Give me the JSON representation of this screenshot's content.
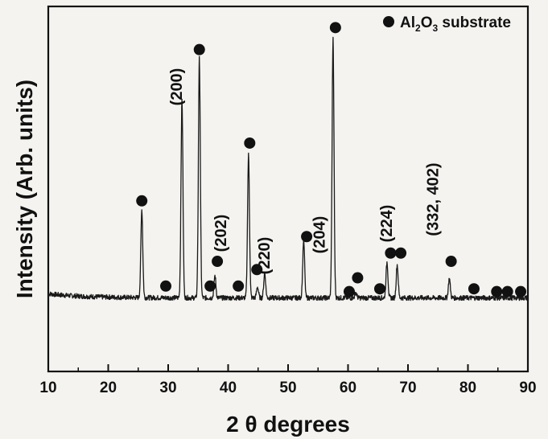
{
  "chart_data": {
    "type": "line",
    "title": "",
    "xlabel": "2 θ degrees",
    "ylabel": "Intensity (Arb. units)",
    "xlim": [
      10,
      90
    ],
    "x_ticks": [
      10,
      20,
      30,
      40,
      50,
      60,
      70,
      80,
      90
    ],
    "y_ticks_shown": false,
    "grid": false,
    "legend": {
      "placement": "top-right",
      "marker": "filled-circle",
      "label_main": "Al",
      "label_sub1": "2",
      "label_mid": "O",
      "label_sub2": "3",
      "label_tail": " substrate"
    },
    "baseline": 0.06,
    "peaks": [
      {
        "x": 25.6,
        "y": 0.38,
        "label": ""
      },
      {
        "x": 32.3,
        "y": 0.78,
        "label": "(200)"
      },
      {
        "x": 35.2,
        "y": 0.93,
        "label": ""
      },
      {
        "x": 37.8,
        "y": 0.14,
        "label": "(202)"
      },
      {
        "x": 43.4,
        "y": 0.58,
        "label": "(220)"
      },
      {
        "x": 44.9,
        "y": 0.1,
        "label": ""
      },
      {
        "x": 46.1,
        "y": 0.15,
        "label": ""
      },
      {
        "x": 52.6,
        "y": 0.27,
        "label": "(204)"
      },
      {
        "x": 57.5,
        "y": 1.0,
        "label": ""
      },
      {
        "x": 61.3,
        "y": 0.08,
        "label": ""
      },
      {
        "x": 66.5,
        "y": 0.19,
        "label": "(224)"
      },
      {
        "x": 68.2,
        "y": 0.18,
        "label": ""
      },
      {
        "x": 76.9,
        "y": 0.13,
        "label": "(332, 402)"
      }
    ],
    "substrate_markers": [
      {
        "x": 25.6,
        "y": 0.41
      },
      {
        "x": 29.6,
        "y": 0.1
      },
      {
        "x": 35.2,
        "y": 0.96
      },
      {
        "x": 37.0,
        "y": 0.1
      },
      {
        "x": 38.2,
        "y": 0.19
      },
      {
        "x": 41.7,
        "y": 0.1
      },
      {
        "x": 43.6,
        "y": 0.62
      },
      {
        "x": 44.8,
        "y": 0.16
      },
      {
        "x": 53.1,
        "y": 0.28
      },
      {
        "x": 57.9,
        "y": 1.04
      },
      {
        "x": 60.2,
        "y": 0.08
      },
      {
        "x": 61.6,
        "y": 0.13
      },
      {
        "x": 65.3,
        "y": 0.09
      },
      {
        "x": 67.1,
        "y": 0.22
      },
      {
        "x": 68.8,
        "y": 0.22
      },
      {
        "x": 77.2,
        "y": 0.19
      },
      {
        "x": 81.0,
        "y": 0.09
      },
      {
        "x": 84.8,
        "y": 0.08
      },
      {
        "x": 86.6,
        "y": 0.08
      },
      {
        "x": 88.8,
        "y": 0.08
      }
    ]
  }
}
